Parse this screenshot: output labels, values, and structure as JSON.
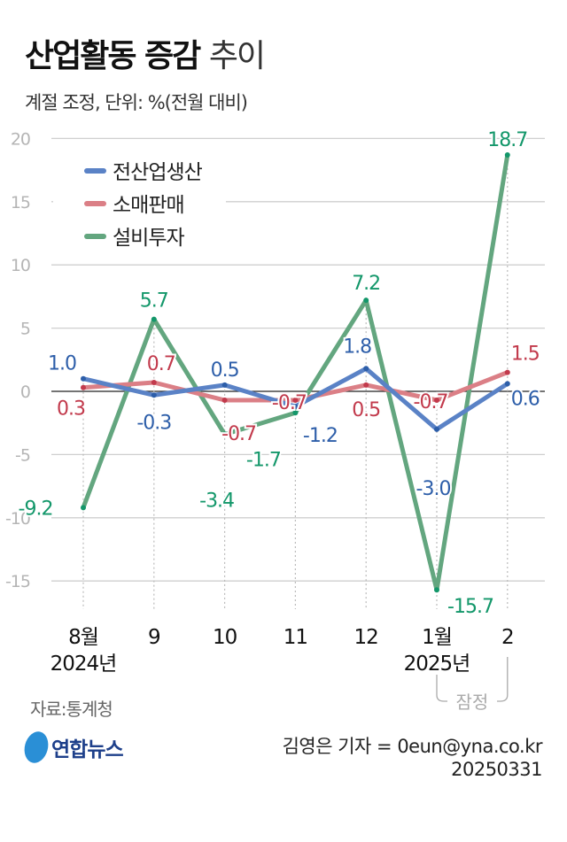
{
  "title": {
    "bold": "산업활동 증감",
    "light": "추이"
  },
  "subtitle": "계절 조정, 단위: %(전월 대비)",
  "source": "자료:통계청",
  "logo": "연합뉴스",
  "credit": {
    "reporter": "김영은 기자 = 0eun@yna.co.kr",
    "date": "20250331"
  },
  "provisional_label": "잠정",
  "chart_data": {
    "type": "line",
    "categories": [
      "8월",
      "9",
      "10",
      "11",
      "12",
      "1월",
      "2"
    ],
    "category_years": [
      "2024년",
      "",
      "",
      "",
      "",
      "2025년",
      ""
    ],
    "ylim": [
      -17,
      21
    ],
    "yticks": [
      20,
      15,
      10,
      5,
      0,
      -5,
      -10,
      -15
    ],
    "grid": true,
    "legend_placement": "top-left",
    "series": [
      {
        "name": "전산업생산",
        "color": "#5a82c6",
        "label_color": "#2d5ea9",
        "values": [
          1.0,
          -0.3,
          0.5,
          -1.2,
          1.8,
          -3.0,
          0.6
        ],
        "labels": [
          "1.0",
          "-0.3",
          "0.5",
          "-1.2",
          "1.8",
          "-3.0",
          "0.6"
        ]
      },
      {
        "name": "소매판매",
        "color": "#db7f86",
        "label_color": "#c23a4c",
        "values": [
          0.3,
          0.7,
          -0.7,
          -0.7,
          0.5,
          -0.7,
          1.5
        ],
        "labels": [
          "0.3",
          "0.7",
          "-0.7",
          "-0.7",
          "0.5",
          "-0.7",
          "1.5"
        ]
      },
      {
        "name": "설비투자",
        "color": "#63a67f",
        "label_color": "#13976a",
        "values": [
          -9.2,
          5.7,
          -3.4,
          -1.7,
          7.2,
          -15.7,
          18.7
        ],
        "labels": [
          "-9.2",
          "5.7",
          "-3.4",
          "-1.7",
          "7.2",
          "-15.7",
          "18.7"
        ]
      }
    ]
  }
}
